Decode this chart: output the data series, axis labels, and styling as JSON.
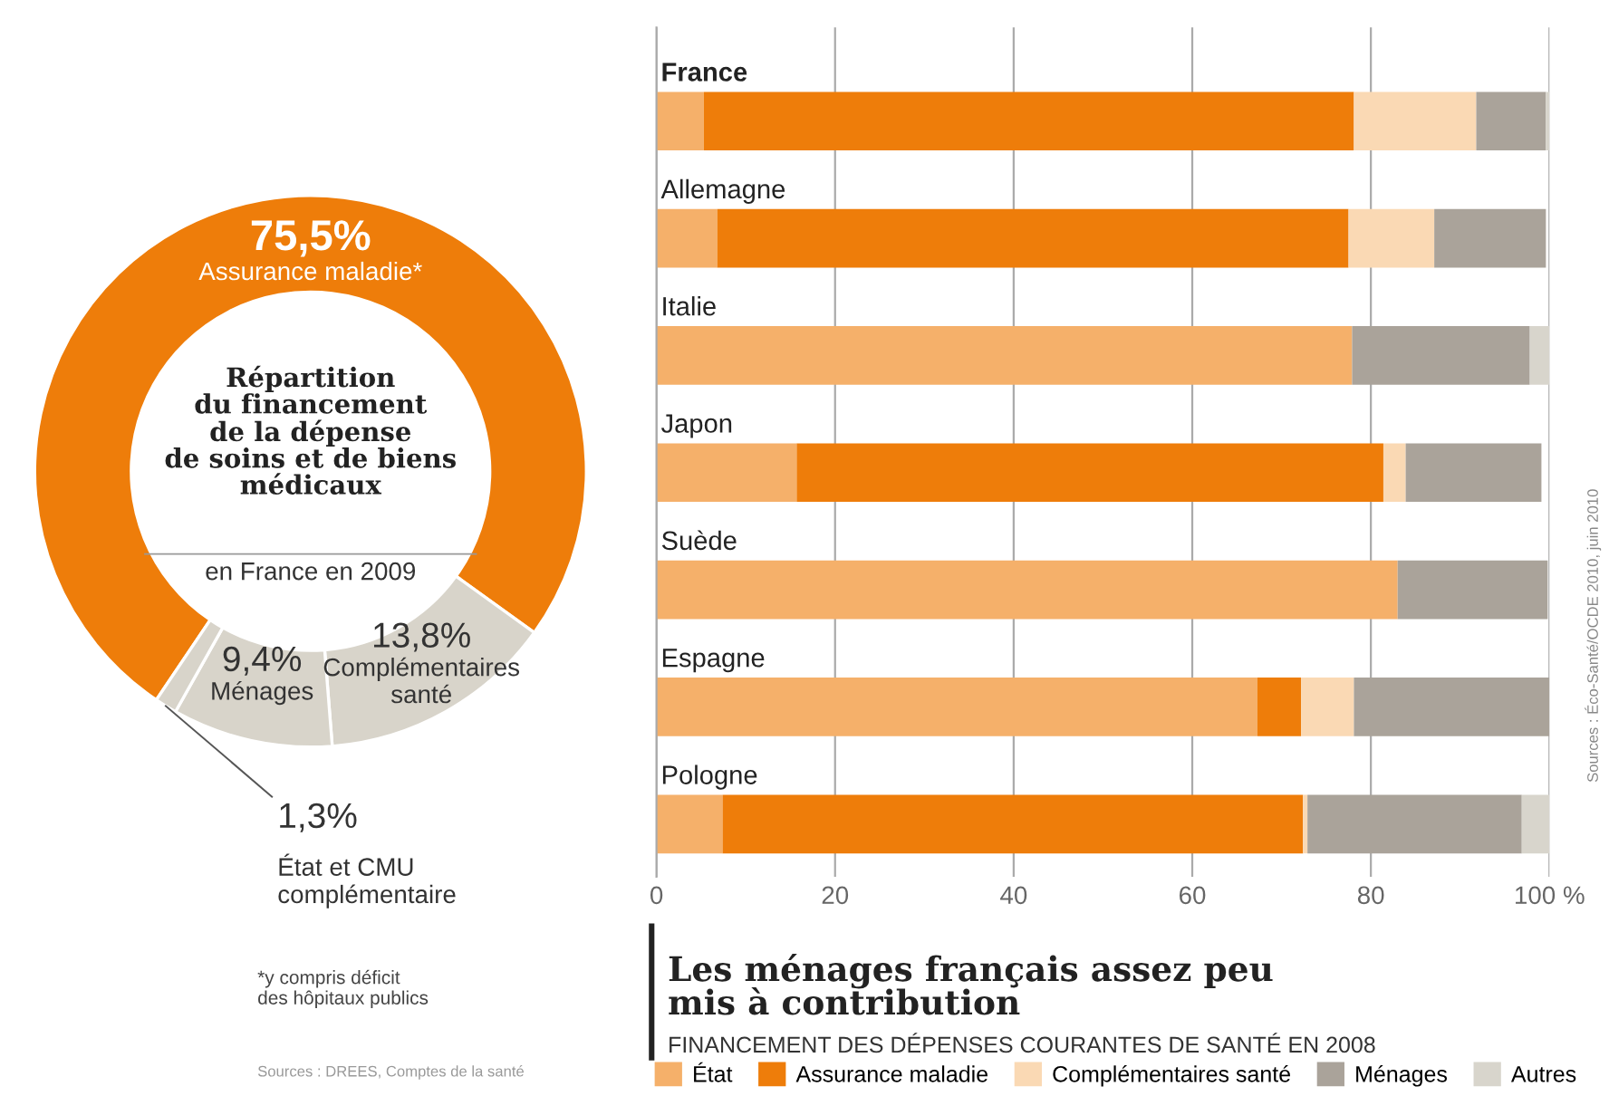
{
  "chart_data": [
    {
      "type": "donut",
      "title": "Répartition du financement de la dépense de soins et de biens médicaux",
      "subtitle": "en France en 2009",
      "categories": [
        "Assurance maladie*",
        "Complémentaires santé",
        "Ménages",
        "État et CMU complémentaire"
      ],
      "values": [
        75.5,
        13.8,
        9.4,
        1.3
      ],
      "value_labels": [
        "75,5%",
        "13,8%",
        "9,4%",
        "1,3%"
      ],
      "colors": [
        "#ee7d0a",
        "#d8d4ca",
        "#d8d4ca",
        "#d8d4ca"
      ],
      "annotations": [
        "*y compris déficit des hôpitaux publics",
        "Sources : DREES, Comptes de la santé"
      ]
    },
    {
      "type": "bar",
      "orientation": "horizontal",
      "stacked": true,
      "title": "Les ménages français assez peu mis à contribution",
      "subtitle": "FINANCEMENT DES DÉPENSES COURANTES DE SANTÉ EN 2008",
      "categories": [
        "France",
        "Allemagne",
        "Italie",
        "Japon",
        "Suède",
        "Espagne",
        "Pologne"
      ],
      "series": [
        {
          "name": "État",
          "color": "#f5b06a",
          "values": [
            5.3,
            6.8,
            77.9,
            15.7,
            83,
            67.3,
            7.4
          ]
        },
        {
          "name": "Assurance maladie",
          "color": "#ee7d0a",
          "values": [
            72.8,
            70.7,
            null,
            65.7,
            null,
            4.9,
            65
          ]
        },
        {
          "name": "Complémentaires santé",
          "color": "#fad9b4",
          "values": [
            13.7,
            9.6,
            null,
            2.5,
            null,
            5.9,
            0.5
          ]
        },
        {
          "name": "Ménages",
          "color": "#aaa39a",
          "values": [
            7.8,
            12.5,
            19.9,
            15.2,
            16.8,
            21.9,
            24
          ]
        },
        {
          "name": "Autres",
          "color": "#d8d5cc",
          "values": [
            0.4,
            null,
            2.2,
            null,
            null,
            null,
            3.1
          ]
        }
      ],
      "xlim": [
        0,
        100
      ],
      "xticks": [
        0,
        20,
        40,
        60,
        80,
        {
          "value": 100,
          "label": "100 %"
        }
      ],
      "grid": "x",
      "legend": "bottom",
      "annotations": [
        "Sources : Éco-Santé/OCDE 2010, juin 2010"
      ]
    }
  ]
}
